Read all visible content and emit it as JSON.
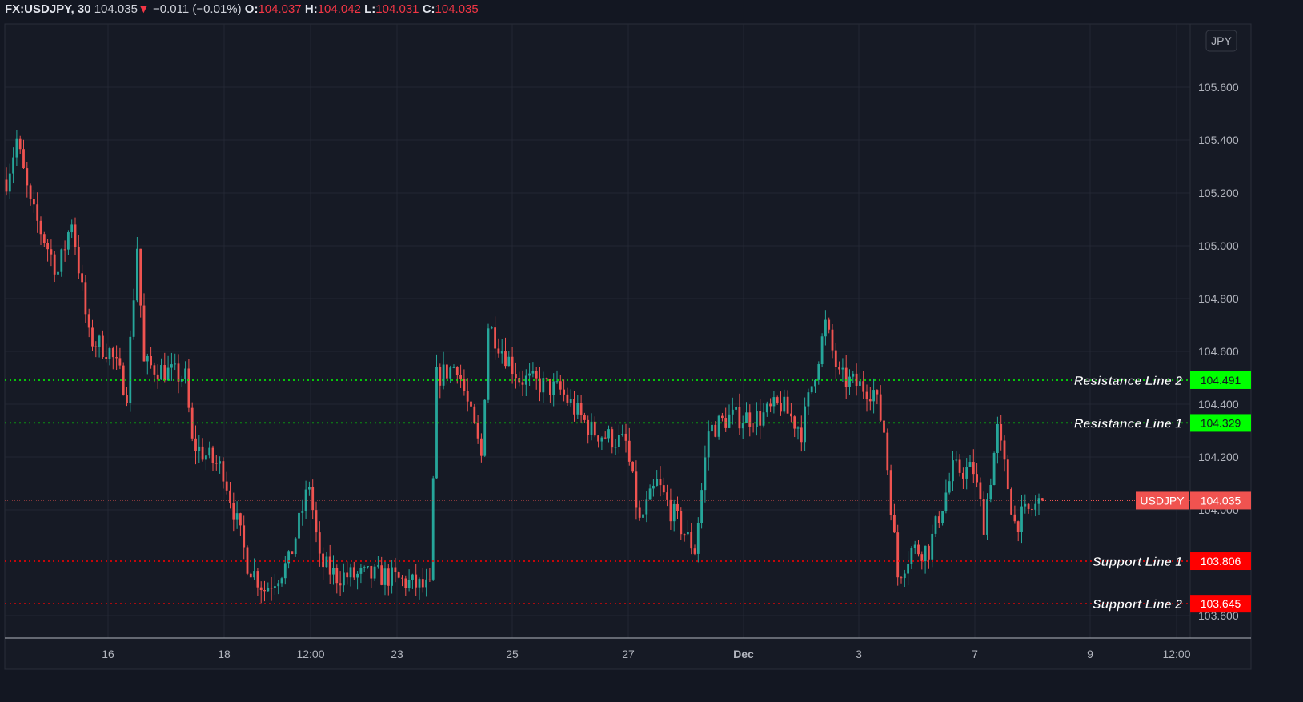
{
  "header": {
    "symbol": "FX:USDJPY, 30",
    "last": "104.035",
    "change": "−0.011 (−0.01%)",
    "o_label": "O:",
    "o": "104.037",
    "h_label": "H:",
    "h": "104.042",
    "l_label": "L:",
    "l": "104.031",
    "c_label": "C:",
    "c": "104.035"
  },
  "currency_button": "JPY",
  "chart_data": {
    "type": "candlestick",
    "title": "FX:USDJPY, 30",
    "ylim": [
      103.55,
      105.85
    ],
    "y_ticks": [
      "105.600",
      "105.400",
      "105.200",
      "105.000",
      "104.800",
      "104.600",
      "104.400",
      "104.200",
      "104.000",
      "103.600"
    ],
    "x_ticks": [
      "16",
      "18",
      "12:00",
      "23",
      "25",
      "27",
      "Dec",
      "3",
      "7",
      "9",
      "12:00"
    ],
    "price_path": [
      [
        0,
        105.25
      ],
      [
        3,
        105.4
      ],
      [
        7,
        105.15
      ],
      [
        15,
        104.9
      ],
      [
        19,
        105.1
      ],
      [
        24,
        104.65
      ],
      [
        30,
        104.6
      ],
      [
        35,
        104.45
      ],
      [
        38,
        105.0
      ],
      [
        40,
        104.55
      ],
      [
        52,
        104.5
      ],
      [
        54,
        104.25
      ],
      [
        63,
        104.15
      ],
      [
        70,
        103.8
      ],
      [
        75,
        103.7
      ],
      [
        82,
        103.8
      ],
      [
        88,
        104.1
      ],
      [
        91,
        103.8
      ],
      [
        96,
        103.75
      ],
      [
        110,
        103.75
      ],
      [
        123,
        103.7
      ],
      [
        125,
        104.5
      ],
      [
        131,
        104.55
      ],
      [
        138,
        104.2
      ],
      [
        140,
        104.7
      ],
      [
        149,
        104.5
      ],
      [
        161,
        104.45
      ],
      [
        170,
        104.3
      ],
      [
        180,
        104.25
      ],
      [
        184,
        103.95
      ],
      [
        189,
        104.1
      ],
      [
        193,
        104.0
      ],
      [
        200,
        103.85
      ],
      [
        204,
        104.3
      ],
      [
        210,
        104.35
      ],
      [
        219,
        104.35
      ],
      [
        225,
        104.4
      ],
      [
        231,
        104.3
      ],
      [
        238,
        104.7
      ],
      [
        242,
        104.5
      ],
      [
        252,
        104.45
      ],
      [
        255,
        104.3
      ],
      [
        259,
        103.75
      ],
      [
        263,
        103.85
      ],
      [
        268,
        103.85
      ],
      [
        275,
        104.15
      ],
      [
        281,
        104.15
      ],
      [
        284,
        103.95
      ],
      [
        288,
        104.3
      ],
      [
        293,
        103.95
      ],
      [
        301,
        104.035
      ]
    ],
    "levels": [
      {
        "name": "Resistance Line 2",
        "price": 104.491,
        "label": "104.491",
        "color": "#00ff00"
      },
      {
        "name": "Resistance Line 1",
        "price": 104.329,
        "label": "104.329",
        "color": "#00ff00"
      },
      {
        "name": "Support Line 1",
        "price": 103.806,
        "label": "103.806",
        "color": "#ff0000"
      },
      {
        "name": "Support Line 2",
        "price": 103.645,
        "label": "103.645",
        "color": "#ff0000"
      }
    ],
    "current": {
      "symbol": "USDJPY",
      "price": 104.035,
      "label": "104.035",
      "color": "#f05350"
    },
    "up_color": "#26a69a",
    "down_color": "#ef5350"
  }
}
